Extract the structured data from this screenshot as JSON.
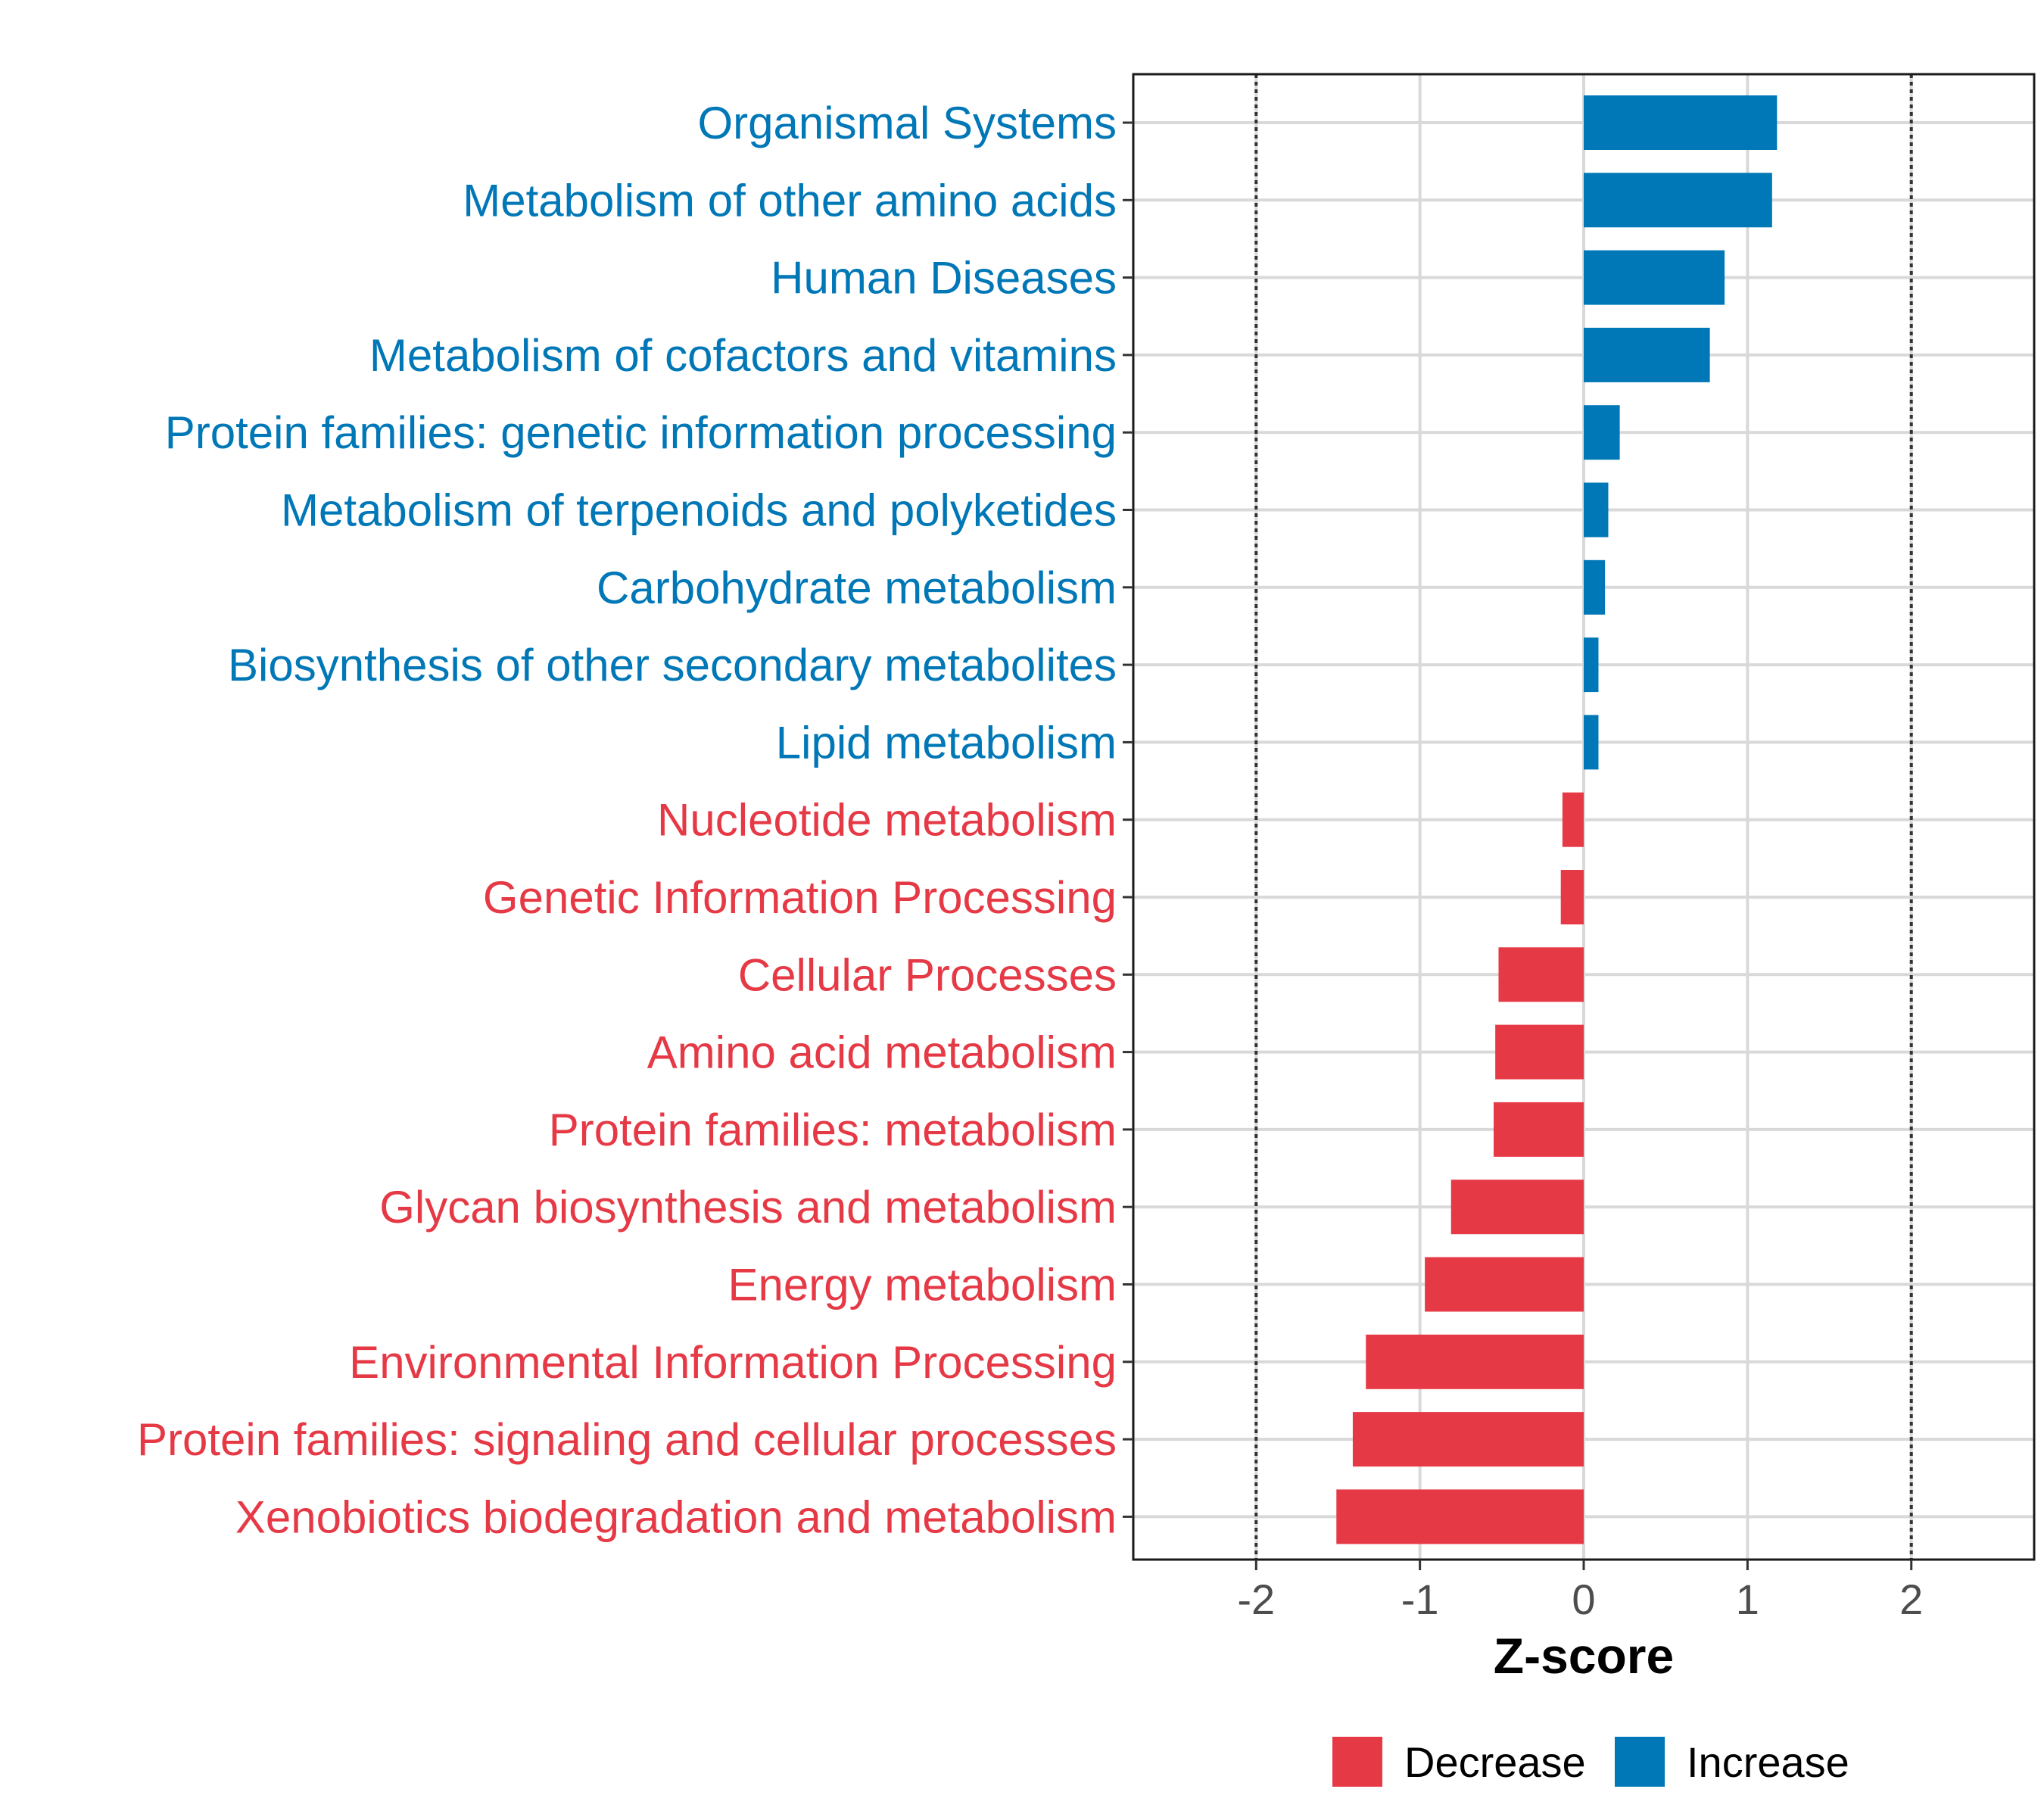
{
  "chart_data": {
    "type": "bar",
    "orientation": "horizontal",
    "title": "",
    "xlabel": "Z-score",
    "ylabel": "",
    "xlim": [
      -2.75,
      2.75
    ],
    "xticks": [
      -2,
      -1,
      0,
      1,
      2
    ],
    "xtick_labels": [
      "-2",
      "-1",
      "0",
      "1",
      "2"
    ],
    "reference_lines": [
      -2,
      2
    ],
    "grid": true,
    "legend_position": "bottom",
    "colors": {
      "Decrease": "#e63946",
      "Increase": "#0077b6"
    },
    "legend": [
      {
        "label": "Decrease",
        "color": "#e63946"
      },
      {
        "label": "Increase",
        "color": "#0077b6"
      }
    ],
    "categories": [
      "Organismal Systems",
      "Metabolism of other amino acids",
      "Human Diseases",
      "Metabolism of cofactors and vitamins",
      "Protein families: genetic information processing",
      "Metabolism of terpenoids and polyketides",
      "Carbohydrate metabolism",
      "Biosynthesis of other secondary metabolites",
      "Lipid metabolism",
      "Nucleotide metabolism",
      "Genetic Information Processing",
      "Cellular Processes",
      "Amino acid metabolism",
      "Protein families: metabolism",
      "Glycan biosynthesis and metabolism",
      "Energy metabolism",
      "Environmental Information Processing",
      "Protein families: signaling and cellular processes",
      "Xenobiotics biodegradation and metabolism"
    ],
    "values": [
      1.18,
      1.15,
      0.86,
      0.77,
      0.22,
      0.15,
      0.13,
      0.09,
      0.09,
      -0.13,
      -0.14,
      -0.52,
      -0.54,
      -0.55,
      -0.81,
      -0.97,
      -1.33,
      -1.41,
      -1.51
    ],
    "groups": [
      "Increase",
      "Increase",
      "Increase",
      "Increase",
      "Increase",
      "Increase",
      "Increase",
      "Increase",
      "Increase",
      "Decrease",
      "Decrease",
      "Decrease",
      "Decrease",
      "Decrease",
      "Decrease",
      "Decrease",
      "Decrease",
      "Decrease",
      "Decrease"
    ]
  }
}
